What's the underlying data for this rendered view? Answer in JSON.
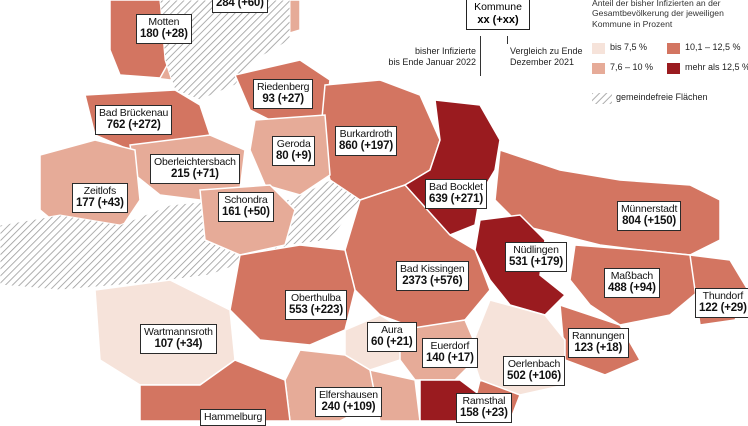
{
  "legend": {
    "kommune_name": "Kommune",
    "kommune_value": "xx (+xx)",
    "note_infizierte": "bisher Infizierte\nbis Ende Januar 2022",
    "note_vergleich": "Vergleich zu Ende\nDezember 2021",
    "header": "Anteil der bisher Infizierten an der Gesamtbevölkerung der jeweiligen Kommune in Prozent",
    "categories": [
      {
        "label": "bis 7,5 %",
        "color": "#f6e3da"
      },
      {
        "label": "7,6 – 10 %",
        "color": "#e6ab98"
      },
      {
        "label": "10,1 – 12,5 %",
        "color": "#d37561"
      },
      {
        "label": "mehr als 12,5 %",
        "color": "#9a1b1f"
      }
    ],
    "gemeindefrei": "gemeindefreie Flächen"
  },
  "municipalities": [
    {
      "name": "",
      "value": "284 (+60)"
    },
    {
      "name": "Motten",
      "value": "180 (+28)"
    },
    {
      "name": "Riedenberg",
      "value": "93 (+27)"
    },
    {
      "name": "Bad Brückenau",
      "value": "762 (+272)"
    },
    {
      "name": "Burkardroth",
      "value": "860 (+197)"
    },
    {
      "name": "Geroda",
      "value": "80 (+9)"
    },
    {
      "name": "Oberleichtersbach",
      "value": "215 (+71)"
    },
    {
      "name": "Zeitlofs",
      "value": "177 (+43)"
    },
    {
      "name": "Schondra",
      "value": "161 (+50)"
    },
    {
      "name": "Bad Bocklet",
      "value": "639 (+271)"
    },
    {
      "name": "Münnerstadt",
      "value": "804 (+150)"
    },
    {
      "name": "Nüdlingen",
      "value": "531 (+179)"
    },
    {
      "name": "Bad Kissingen",
      "value": "2373 (+576)"
    },
    {
      "name": "Maßbach",
      "value": "488 (+94)"
    },
    {
      "name": "Oberthulba",
      "value": "553 (+223)"
    },
    {
      "name": "Thundorf",
      "value": "122 (+29)"
    },
    {
      "name": "Wartmannsroth",
      "value": "107 (+34)"
    },
    {
      "name": "Aura",
      "value": "60 (+21)"
    },
    {
      "name": "Rannungen",
      "value": "123 (+18)"
    },
    {
      "name": "Euerdorf",
      "value": "140 (+17)"
    },
    {
      "name": "Oerlenbach",
      "value": "502 (+106)"
    },
    {
      "name": "Elfershausen",
      "value": "240 (+109)"
    },
    {
      "name": "Hammelburg",
      "value": ""
    },
    {
      "name": "Ramsthal",
      "value": "158 (+23)"
    }
  ]
}
